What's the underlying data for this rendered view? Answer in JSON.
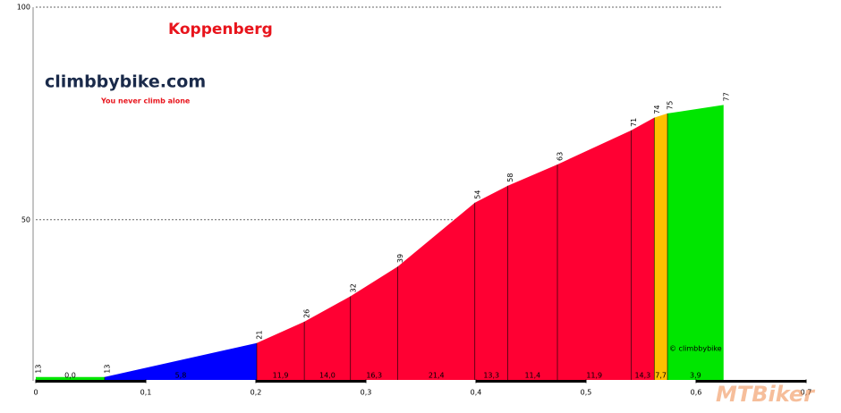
{
  "chart_data": {
    "type": "climb-profile",
    "title": "Koppenberg",
    "x": [
      0,
      0.0626,
      0.2008,
      0.244,
      0.286,
      0.329,
      0.399,
      0.429,
      0.474,
      0.541,
      0.562,
      0.574,
      0.625
    ],
    "values": [
      13,
      13,
      21,
      26,
      32,
      39,
      54,
      58,
      63,
      71,
      74,
      75,
      77
    ],
    "segments": {
      "values": [
        0,
        5.8,
        11.9,
        14,
        16.3,
        21.4,
        13.3,
        11.4,
        11.9,
        14.3,
        7.7,
        3.9
      ],
      "value_labels": [
        "0,0",
        "5,8",
        "11,9",
        "14,0",
        "16,3",
        "21,4",
        "13,3",
        "11,4",
        "11,9",
        "14,3",
        "7,7",
        "3,9"
      ],
      "colors": [
        "#00e600",
        "#0000ff",
        "#ff0033",
        "#ff0033",
        "#ff0033",
        "#ff0033",
        "#ff0033",
        "#ff0033",
        "#ff0033",
        "#ff0033",
        "#ffc000",
        "#00e600"
      ]
    },
    "xlim": [
      0,
      0.7
    ],
    "xticks": [
      0,
      {
        "value": 0.1,
        "label": "0,1"
      },
      {
        "value": 0.2,
        "label": "0,2"
      },
      {
        "value": 0.3,
        "label": "0,3"
      },
      {
        "value": 0.4,
        "label": "0,4"
      },
      {
        "value": 0.5,
        "label": "0,5"
      },
      {
        "value": 0.6,
        "label": "0,6"
      },
      {
        "value": 0.7,
        "label": "0,7"
      }
    ],
    "ylim": [
      12,
      100
    ],
    "yticks": [
      50,
      100
    ],
    "grid": true
  },
  "branding": {
    "logo": "climbbybike.com",
    "tagline": "You never climb alone",
    "copyright": "© climbbybike",
    "watermark": "MTBiker"
  }
}
